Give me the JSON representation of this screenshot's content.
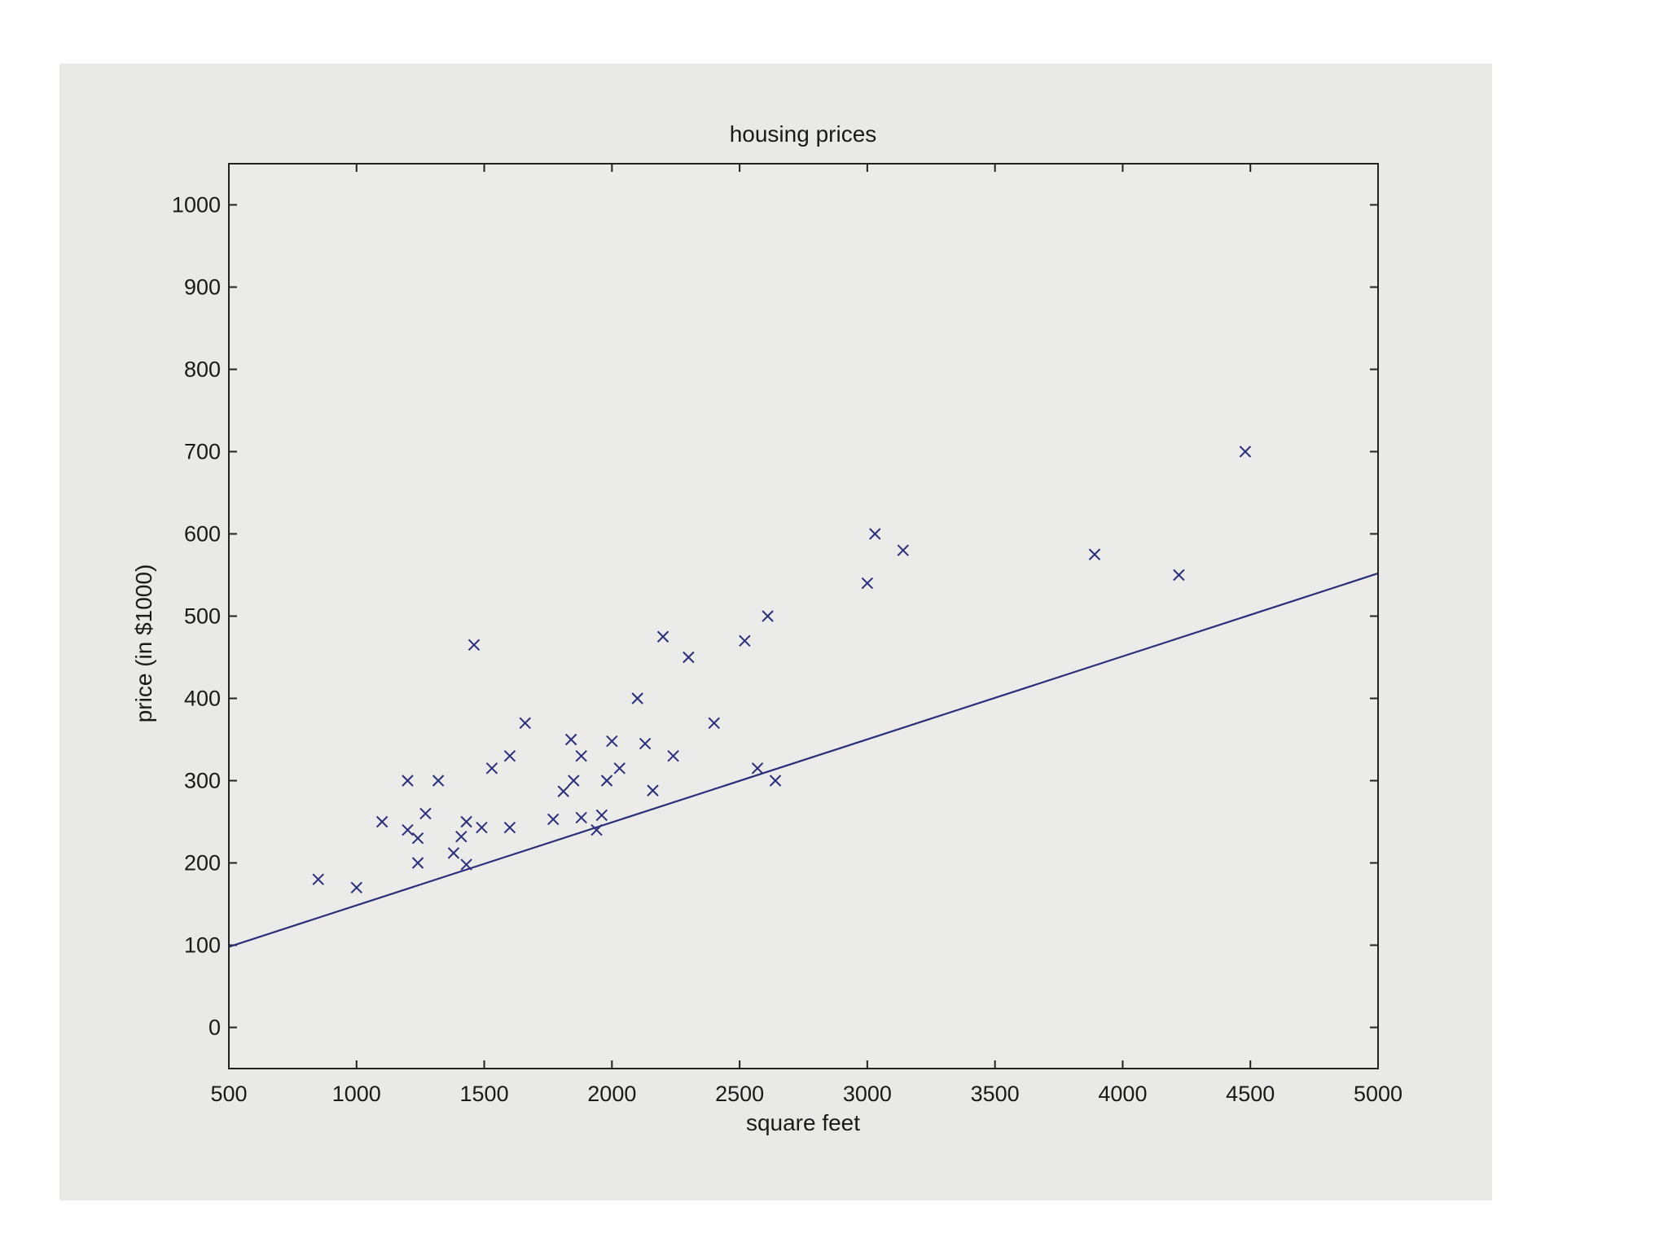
{
  "chart_data": {
    "type": "scatter",
    "title": "housing prices",
    "xlabel": "square feet",
    "ylabel": "price (in $1000)",
    "xlim": [
      500,
      5000
    ],
    "ylim": [
      -50,
      1050
    ],
    "xticks": [
      500,
      1000,
      1500,
      2000,
      2500,
      3000,
      3500,
      4000,
      4500,
      5000
    ],
    "yticks": [
      0,
      100,
      200,
      300,
      400,
      500,
      600,
      700,
      800,
      900,
      1000
    ],
    "grid": false,
    "colors": {
      "marker": "#2b2f7a",
      "line": "#2b2f7a",
      "panel": "#e9e9e7",
      "axes_face": "#ebebe9"
    },
    "series": [
      {
        "marker": "x",
        "points": [
          [
            850,
            180
          ],
          [
            1000,
            170
          ],
          [
            1100,
            250
          ],
          [
            1200,
            300
          ],
          [
            1200,
            240
          ],
          [
            1240,
            230
          ],
          [
            1240,
            200
          ],
          [
            1270,
            260
          ],
          [
            1320,
            300
          ],
          [
            1380,
            212
          ],
          [
            1410,
            232
          ],
          [
            1430,
            250
          ],
          [
            1430,
            198
          ],
          [
            1460,
            465
          ],
          [
            1490,
            243
          ],
          [
            1530,
            315
          ],
          [
            1600,
            330
          ],
          [
            1600,
            243
          ],
          [
            1660,
            370
          ],
          [
            1770,
            253
          ],
          [
            1810,
            287
          ],
          [
            1840,
            350
          ],
          [
            1850,
            300
          ],
          [
            1880,
            330
          ],
          [
            1880,
            255
          ],
          [
            1940,
            240
          ],
          [
            1960,
            258
          ],
          [
            1980,
            300
          ],
          [
            2000,
            348
          ],
          [
            2030,
            315
          ],
          [
            2100,
            400
          ],
          [
            2130,
            345
          ],
          [
            2160,
            288
          ],
          [
            2200,
            475
          ],
          [
            2240,
            330
          ],
          [
            2300,
            450
          ],
          [
            2400,
            370
          ],
          [
            2520,
            470
          ],
          [
            2570,
            315
          ],
          [
            2610,
            500
          ],
          [
            2640,
            300
          ],
          [
            3000,
            540
          ],
          [
            3030,
            600
          ],
          [
            3140,
            580
          ],
          [
            3890,
            575
          ],
          [
            4220,
            550
          ],
          [
            4480,
            700
          ]
        ]
      },
      {
        "type": "line",
        "x": [
          500,
          5000
        ],
        "y": [
          98,
          552
        ]
      }
    ]
  }
}
